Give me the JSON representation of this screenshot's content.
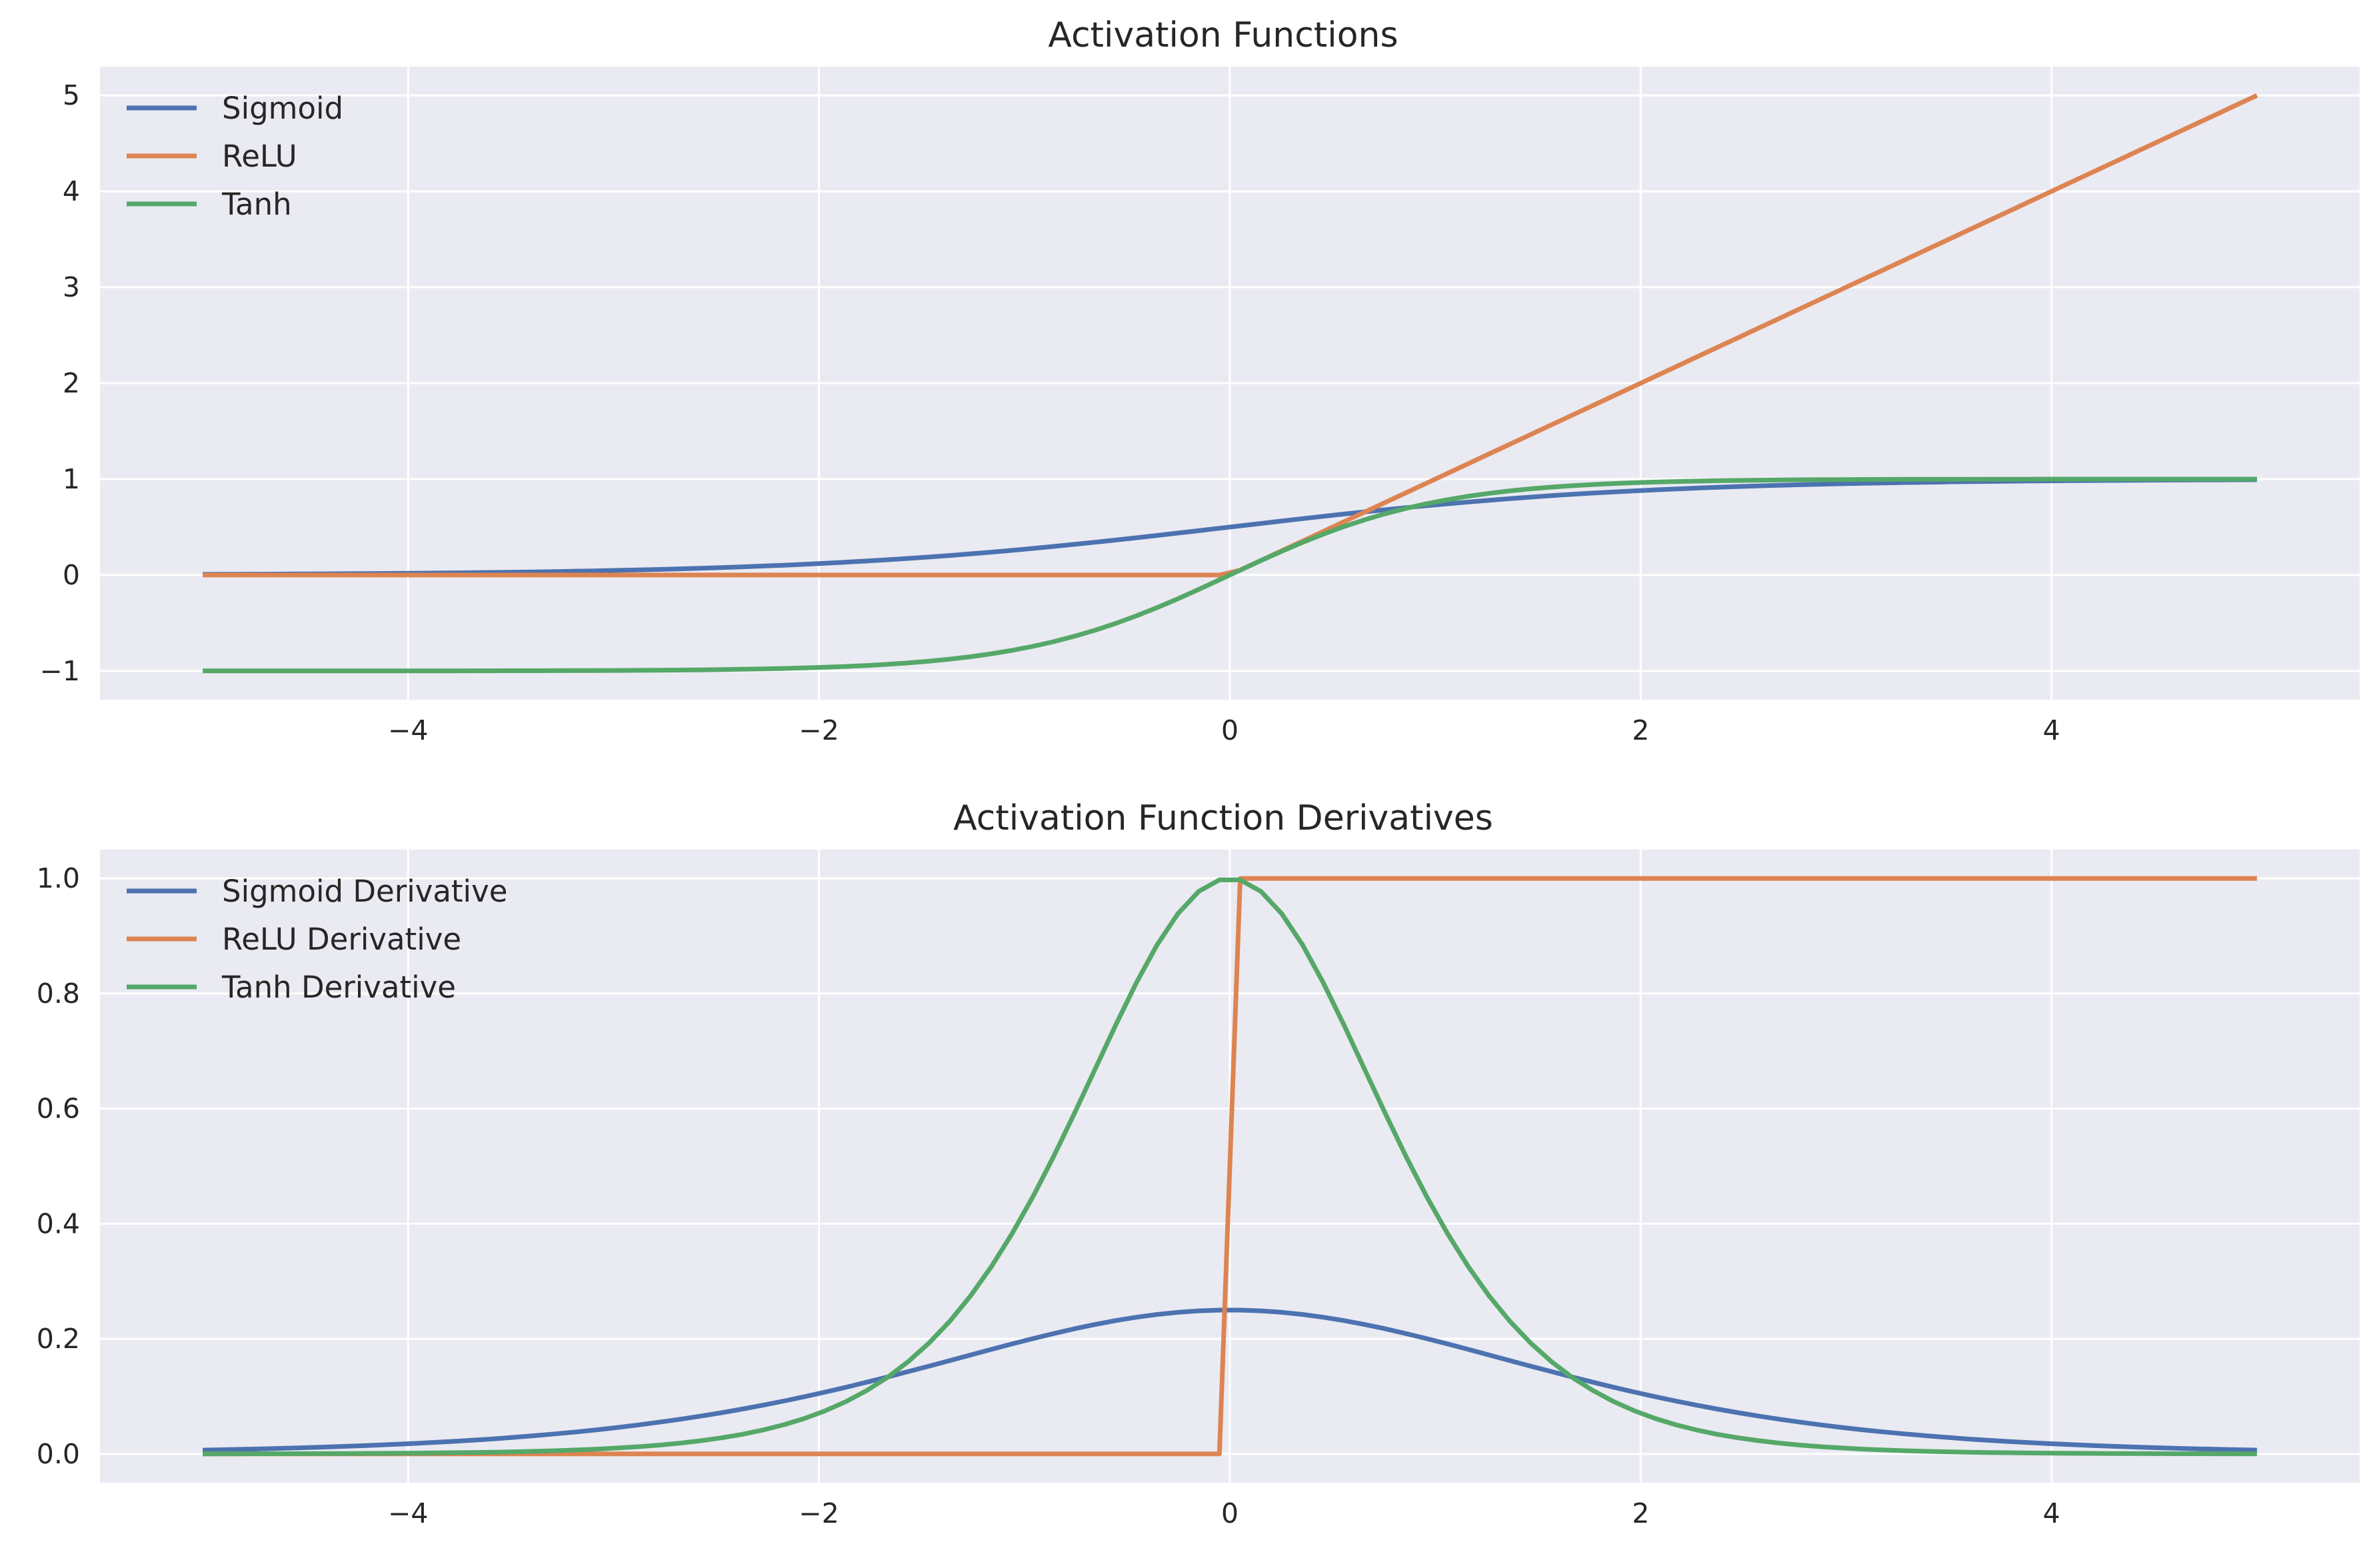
{
  "chart_data": [
    {
      "type": "line",
      "title": "Activation Functions",
      "xlabel": "",
      "ylabel": "",
      "xlim": [
        -5.5,
        5.5
      ],
      "ylim": [
        -1.3,
        5.3
      ],
      "xticks": [
        -4,
        -2,
        0,
        2,
        4
      ],
      "xtick_labels": [
        "−4",
        "−2",
        "0",
        "2",
        "4"
      ],
      "yticks": [
        -1,
        0,
        1,
        2,
        3,
        4,
        5
      ],
      "ytick_labels": [
        "−1",
        "0",
        "1",
        "2",
        "3",
        "4",
        "5"
      ],
      "grid": true,
      "legend_position": "upper-left",
      "x_range": [
        -5,
        5
      ],
      "sample_count": 100,
      "series": [
        {
          "name": "Sigmoid",
          "function": "sigmoid",
          "color": "#4c72b0",
          "x": [
            -5,
            -4,
            -3,
            -2,
            -1,
            0,
            1,
            2,
            3,
            4,
            5
          ],
          "values": [
            0.007,
            0.018,
            0.047,
            0.119,
            0.269,
            0.5,
            0.731,
            0.881,
            0.953,
            0.982,
            0.993
          ]
        },
        {
          "name": "ReLU",
          "function": "relu",
          "color": "#dd8452",
          "x": [
            -5,
            -4,
            -3,
            -2,
            -1,
            0,
            1,
            2,
            3,
            4,
            5
          ],
          "values": [
            0,
            0,
            0,
            0,
            0,
            0,
            1,
            2,
            3,
            4,
            5
          ]
        },
        {
          "name": "Tanh",
          "function": "tanh",
          "color": "#55a868",
          "x": [
            -5,
            -4,
            -3,
            -2,
            -1,
            0,
            1,
            2,
            3,
            4,
            5
          ],
          "values": [
            -1.0,
            -0.999,
            -0.995,
            -0.964,
            -0.762,
            0,
            0.762,
            0.964,
            0.995,
            0.999,
            1.0
          ]
        }
      ]
    },
    {
      "type": "line",
      "title": "Activation Function Derivatives",
      "xlabel": "",
      "ylabel": "",
      "xlim": [
        -5.5,
        5.5
      ],
      "ylim": [
        -0.05,
        1.05
      ],
      "xticks": [
        -4,
        -2,
        0,
        2,
        4
      ],
      "xtick_labels": [
        "−4",
        "−2",
        "0",
        "2",
        "4"
      ],
      "yticks": [
        0.0,
        0.2,
        0.4,
        0.6,
        0.8,
        1.0
      ],
      "ytick_labels": [
        "0.0",
        "0.2",
        "0.4",
        "0.6",
        "0.8",
        "1.0"
      ],
      "grid": true,
      "legend_position": "upper-left",
      "x_range": [
        -5,
        5
      ],
      "sample_count": 100,
      "series": [
        {
          "name": "Sigmoid Derivative",
          "function": "sigmoid_derivative",
          "color": "#4c72b0",
          "x": [
            -5,
            -4,
            -3,
            -2,
            -1,
            0,
            1,
            2,
            3,
            4,
            5
          ],
          "values": [
            0.007,
            0.018,
            0.045,
            0.105,
            0.197,
            0.25,
            0.197,
            0.105,
            0.045,
            0.018,
            0.007
          ]
        },
        {
          "name": "ReLU Derivative",
          "function": "relu_derivative",
          "color": "#dd8452",
          "x": [
            -5,
            -0.05,
            0.05,
            5
          ],
          "values": [
            0,
            0,
            1,
            1
          ]
        },
        {
          "name": "Tanh Derivative",
          "function": "tanh_derivative",
          "color": "#55a868",
          "x": [
            -5,
            -4,
            -3,
            -2,
            -1,
            0,
            1,
            2,
            3,
            4,
            5
          ],
          "values": [
            0.0002,
            0.0013,
            0.0099,
            0.071,
            0.42,
            1.0,
            0.42,
            0.071,
            0.0099,
            0.0013,
            0.0002
          ]
        }
      ]
    }
  ]
}
